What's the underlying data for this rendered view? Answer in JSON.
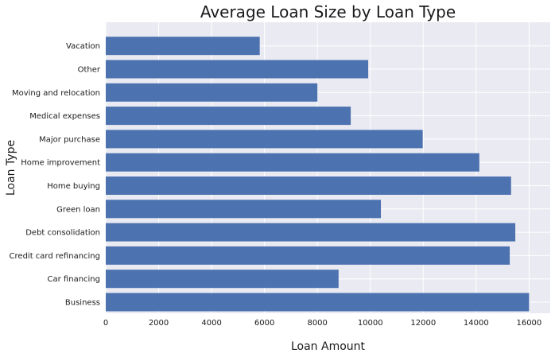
{
  "chart_data": {
    "type": "bar",
    "orientation": "horizontal",
    "title": "Average Loan Size by Loan Type",
    "xlabel": "Loan Amount",
    "ylabel": "Loan Type",
    "xlim": [
      0,
      16800
    ],
    "xticks": [
      0,
      2000,
      4000,
      6000,
      8000,
      10000,
      12000,
      14000,
      16000
    ],
    "grid": true,
    "bar_color": "#4c72b0",
    "background_color": "#eaeaf2",
    "categories": [
      "Business",
      "Car financing",
      "Credit card refinancing",
      "Debt consolidation",
      "Green loan",
      "Home buying",
      "Home improvement",
      "Major purchase",
      "Medical expenses",
      "Moving and relocation",
      "Other",
      "Vacation"
    ],
    "values": [
      16000,
      8800,
      15270,
      15480,
      10400,
      15320,
      14120,
      11980,
      9260,
      8000,
      9920,
      5820
    ]
  }
}
